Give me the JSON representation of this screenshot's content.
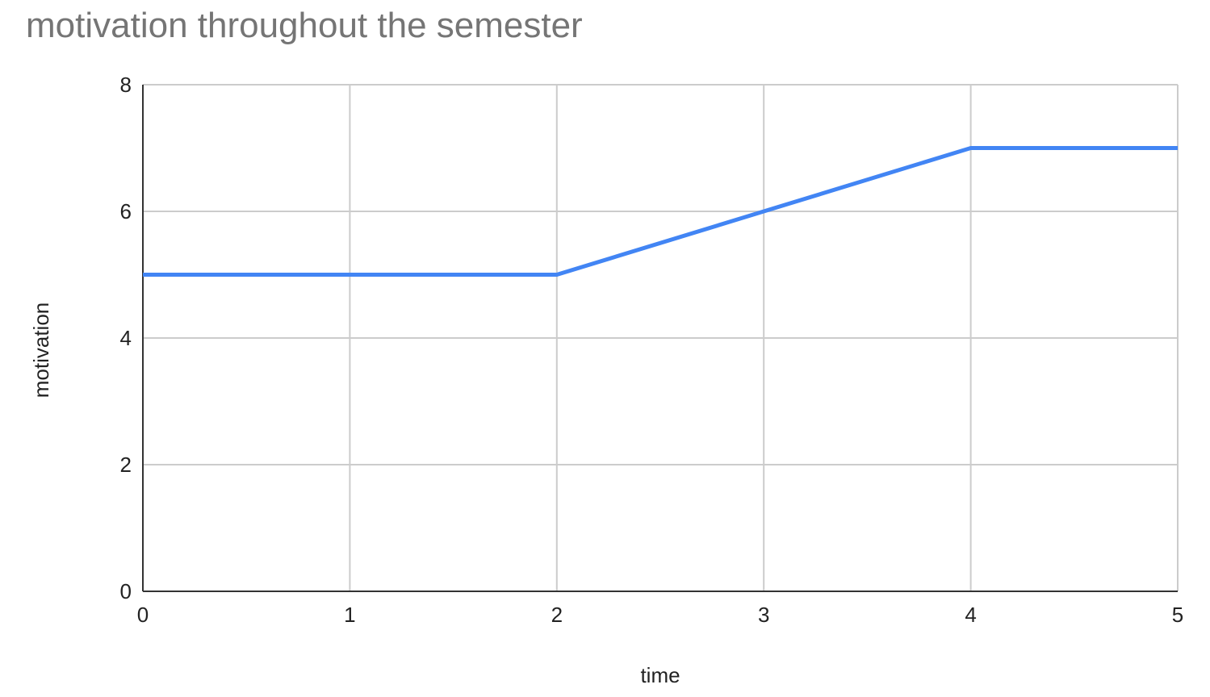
{
  "chart_data": {
    "type": "line",
    "title": "motivation throughout the semester",
    "xlabel": "time",
    "ylabel": "motivation",
    "x": [
      0,
      1,
      2,
      3,
      4,
      5
    ],
    "series": [
      {
        "values": [
          5,
          5,
          5,
          6,
          7,
          7
        ]
      }
    ],
    "xlim": [
      0,
      5
    ],
    "ylim": [
      0,
      8
    ],
    "xticks": [
      0,
      1,
      2,
      3,
      4,
      5
    ],
    "yticks": [
      0,
      2,
      4,
      6,
      8
    ],
    "grid": true,
    "legend": "none",
    "colors": {
      "line": "#4285f4",
      "grid": "#cccccc",
      "axis": "#333333",
      "title": "#757575",
      "text": "#222222"
    }
  }
}
